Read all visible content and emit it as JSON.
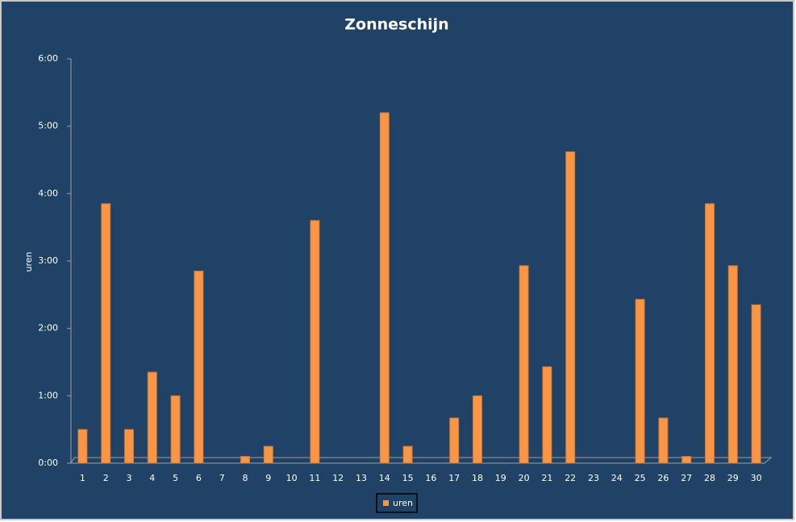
{
  "chart_data": {
    "type": "bar",
    "title": "Zonneschijn",
    "y_label": "uren",
    "categories": [
      "1",
      "2",
      "3",
      "4",
      "5",
      "6",
      "7",
      "8",
      "9",
      "10",
      "11",
      "12",
      "13",
      "14",
      "15",
      "16",
      "17",
      "18",
      "19",
      "20",
      "21",
      "22",
      "23",
      "24",
      "25",
      "26",
      "27",
      "28",
      "29",
      "30"
    ],
    "series": [
      {
        "name": "uren",
        "color": "#f79646",
        "values": [
          0.5,
          3.85,
          0.5,
          1.35,
          1.0,
          2.85,
          0,
          0.1,
          0.25,
          0,
          3.6,
          0,
          0,
          5.2,
          0.25,
          0,
          0.67,
          1.0,
          0,
          2.93,
          1.43,
          4.62,
          0,
          0,
          2.43,
          0.67,
          0.1,
          3.85,
          2.93,
          2.35
        ]
      }
    ],
    "ylim": [
      0,
      6
    ],
    "yticks": [
      {
        "value": 0,
        "label": "0:00"
      },
      {
        "value": 1,
        "label": "1:00"
      },
      {
        "value": 2,
        "label": "2:00"
      },
      {
        "value": 3,
        "label": "3:00"
      },
      {
        "value": 4,
        "label": "4:00"
      },
      {
        "value": 5,
        "label": "5:00"
      },
      {
        "value": 6,
        "label": "6:00"
      }
    ],
    "legend": "bottom"
  }
}
